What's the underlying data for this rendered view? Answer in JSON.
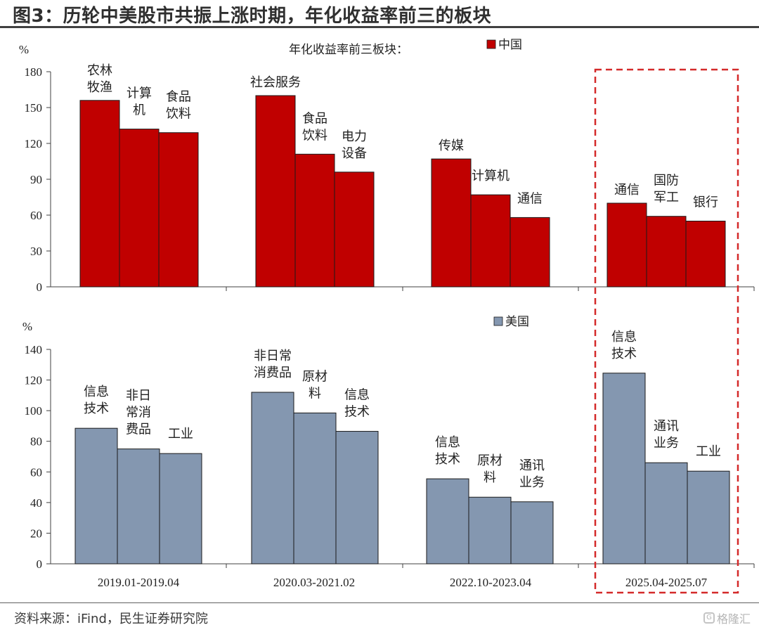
{
  "figure_title": "图3：历轮中美股市共振上涨时期，年化收益率前三的板块",
  "source_note": "资料来源：iFind，民生证券研究院",
  "watermark_text": "格隆汇",
  "colors": {
    "china": "#c00000",
    "usa": "#8497b0",
    "highlight": "#d42a2a",
    "axis": "#404040"
  },
  "chart_data": [
    {
      "type": "bar",
      "panel": "top",
      "title": "年化收益率前三板块：",
      "ylabel": "%",
      "ylim": [
        0,
        180
      ],
      "yticks": [
        0,
        30,
        60,
        90,
        120,
        150,
        180
      ],
      "legend": "中国",
      "legend_position": "top",
      "categories": [
        "2019.01-2019.04",
        "2020.03-2021.02",
        "2022.10-2023.04",
        "2025.04-2025.07"
      ],
      "groups": [
        {
          "bars": [
            {
              "label": [
                "农林",
                "牧渔"
              ],
              "value": 156
            },
            {
              "label": [
                "计算",
                "机"
              ],
              "value": 132
            },
            {
              "label": [
                "食品",
                "饮料"
              ],
              "value": 129
            }
          ]
        },
        {
          "bars": [
            {
              "label": [
                "社会服务"
              ],
              "value": 160
            },
            {
              "label": [
                "食品",
                "饮料"
              ],
              "value": 111
            },
            {
              "label": [
                "电力",
                "设备"
              ],
              "value": 96
            }
          ]
        },
        {
          "bars": [
            {
              "label": [
                "传媒"
              ],
              "value": 107
            },
            {
              "label": [
                "计算机"
              ],
              "value": 77
            },
            {
              "label": [
                "通信"
              ],
              "value": 58
            }
          ]
        },
        {
          "bars": [
            {
              "label": [
                "通信"
              ],
              "value": 70
            },
            {
              "label": [
                "国防",
                "军工"
              ],
              "value": 59
            },
            {
              "label": [
                "银行"
              ],
              "value": 55
            }
          ]
        }
      ]
    },
    {
      "type": "bar",
      "panel": "bottom",
      "ylabel": "%",
      "ylim": [
        0,
        140
      ],
      "yticks": [
        0,
        20,
        40,
        60,
        80,
        100,
        120,
        140
      ],
      "legend": "美国",
      "legend_position": "top",
      "categories": [
        "2019.01-2019.04",
        "2020.03-2021.02",
        "2022.10-2023.04",
        "2025.04-2025.07"
      ],
      "groups": [
        {
          "bars": [
            {
              "label": [
                "信息",
                "技术"
              ],
              "value": 88.5
            },
            {
              "label": [
                "非日",
                "常消",
                "费品"
              ],
              "value": 75
            },
            {
              "label": [
                "工业"
              ],
              "value": 72
            }
          ]
        },
        {
          "bars": [
            {
              "label": [
                "非日常",
                "消费品"
              ],
              "value": 112
            },
            {
              "label": [
                "原材",
                "料"
              ],
              "value": 98.5
            },
            {
              "label": [
                "信息",
                "技术"
              ],
              "value": 86.5
            }
          ]
        },
        {
          "bars": [
            {
              "label": [
                "信息",
                "技术"
              ],
              "value": 55.5
            },
            {
              "label": [
                "原材",
                "料"
              ],
              "value": 43.5
            },
            {
              "label": [
                "通讯",
                "业务"
              ],
              "value": 40.5
            }
          ]
        },
        {
          "bars": [
            {
              "label": [
                "信息",
                "技术"
              ],
              "value": 124.5
            },
            {
              "label": [
                "通讯",
                "业务"
              ],
              "value": 66
            },
            {
              "label": [
                "工业"
              ],
              "value": 60.5
            }
          ]
        }
      ]
    }
  ],
  "highlight_period": "2025.04-2025.07"
}
